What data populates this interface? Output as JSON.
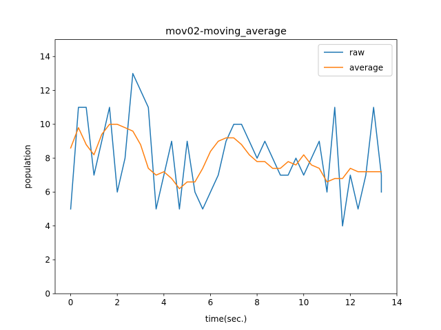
{
  "chart_data": {
    "type": "line",
    "title": "mov02-moving_average",
    "xlabel": "time(sec.)",
    "ylabel": "population",
    "xlim": [
      -0.667,
      14
    ],
    "ylim": [
      0,
      15
    ],
    "xticks": [
      0,
      2,
      4,
      6,
      8,
      10,
      12,
      14
    ],
    "yticks": [
      0,
      2,
      4,
      6,
      8,
      10,
      12,
      14
    ],
    "grid": false,
    "legend_position": "top-right",
    "series": [
      {
        "name": "raw",
        "color": "#1f77b4",
        "x": [
          0,
          0.333,
          0.667,
          1.0,
          1.333,
          1.667,
          2.0,
          2.333,
          2.667,
          3.0,
          3.333,
          3.667,
          4.0,
          4.333,
          4.667,
          5.0,
          5.333,
          5.667,
          6.0,
          6.333,
          6.667,
          7.0,
          7.333,
          7.667,
          8.0,
          8.333,
          8.667,
          9.0,
          9.333,
          9.667,
          10.0,
          10.333,
          10.667,
          11.0,
          11.333,
          11.667,
          12.0,
          12.333,
          12.667,
          13.0,
          13.333,
          13.333
        ],
        "y": [
          5,
          11,
          11,
          7,
          9,
          11,
          6,
          8,
          13,
          12,
          11,
          5,
          7,
          9,
          5,
          9,
          6,
          5,
          6,
          7,
          9,
          10,
          10,
          9,
          8,
          9,
          8,
          7,
          7,
          8,
          7,
          8,
          9,
          6,
          11,
          4,
          7,
          5,
          7,
          11,
          7,
          6
        ]
      },
      {
        "name": "average",
        "color": "#ff7f0e",
        "x": [
          0,
          0.333,
          0.667,
          1.0,
          1.333,
          1.667,
          2.0,
          2.333,
          2.667,
          3.0,
          3.333,
          3.667,
          4.0,
          4.333,
          4.667,
          5.0,
          5.333,
          5.667,
          6.0,
          6.333,
          6.667,
          7.0,
          7.333,
          7.667,
          8.0,
          8.333,
          8.667,
          9.0,
          9.333,
          9.667,
          10.0,
          10.333,
          10.667,
          11.0,
          11.333,
          11.667,
          12.0,
          12.333,
          12.667,
          13.0,
          13.333
        ],
        "y": [
          8.6,
          9.8,
          8.8,
          8.2,
          9.4,
          10.0,
          10.0,
          9.8,
          9.6,
          8.8,
          7.4,
          7.0,
          7.2,
          6.8,
          6.2,
          6.6,
          6.6,
          7.4,
          8.4,
          9.0,
          9.2,
          9.2,
          8.8,
          8.2,
          7.8,
          7.8,
          7.4,
          7.4,
          7.8,
          7.6,
          8.2,
          7.6,
          7.4,
          6.6,
          6.8,
          6.8,
          7.4,
          7.2,
          7.2,
          7.2,
          7.2
        ]
      }
    ]
  }
}
